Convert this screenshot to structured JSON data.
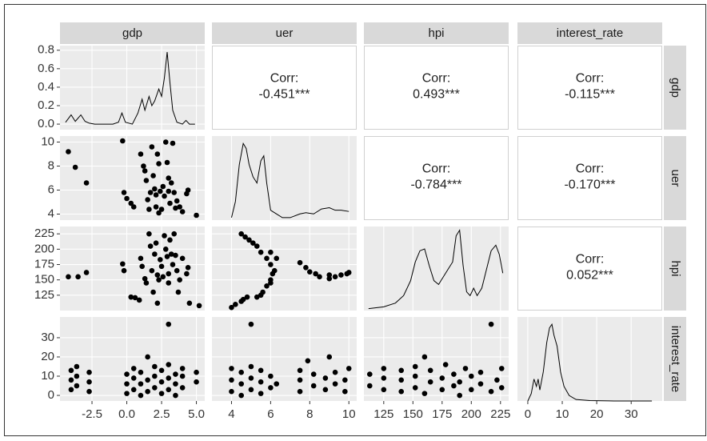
{
  "chart_data": {
    "type": "pairs",
    "variables": [
      "gdp",
      "uer",
      "hpi",
      "interest_rate"
    ],
    "color": "#000000",
    "grid": true,
    "x_axes": [
      {
        "lim": [
          -4.8,
          5.6
        ],
        "ticks": [
          -2.5,
          {
            "value": 0,
            "label": "0.0"
          },
          2.5,
          {
            "value": 5,
            "label": "5.0"
          }
        ]
      },
      {
        "lim": [
          3,
          10.4
        ],
        "ticks": [
          4,
          6,
          8,
          10
        ]
      },
      {
        "lim": [
          108,
          232
        ],
        "ticks": [
          125,
          150,
          175,
          200,
          225
        ]
      },
      {
        "lim": [
          -3,
          39
        ],
        "ticks": [
          0,
          10,
          20,
          30
        ]
      }
    ],
    "y_axes": [
      {
        "lim": [
          -0.06,
          0.85
        ],
        "ticks": [
          {
            "value": 0,
            "label": "0.0"
          },
          0.2,
          0.4,
          0.6,
          0.8
        ]
      },
      {
        "lim": [
          3.5,
          10.5
        ],
        "ticks": [
          4,
          6,
          8,
          10
        ]
      },
      {
        "lim": [
          100,
          237
        ],
        "ticks": [
          125,
          150,
          175,
          200,
          225
        ]
      },
      {
        "lim": [
          -2.9,
          40.8
        ],
        "ticks": [
          0,
          10,
          20,
          30
        ]
      }
    ],
    "densities": [
      {
        "ylim": [
          -0.06,
          0.85
        ],
        "x": [
          -4.4,
          -4.0,
          -3.7,
          -3.3,
          -3.0,
          -2.7,
          -2.3,
          -1.0,
          -0.6,
          -0.35,
          -0.1,
          0.4,
          0.8,
          1.1,
          1.3,
          1.6,
          1.8,
          2.0,
          2.3,
          2.5,
          2.7,
          2.9,
          3.1,
          3.3,
          3.6,
          4.0,
          4.25,
          4.5,
          4.9
        ],
        "y": [
          0.02,
          0.1,
          0.03,
          0.1,
          0.03,
          0.01,
          0.0,
          0.0,
          0.02,
          0.12,
          0.02,
          0.0,
          0.12,
          0.27,
          0.15,
          0.3,
          0.2,
          0.25,
          0.38,
          0.3,
          0.5,
          0.78,
          0.45,
          0.15,
          0.02,
          0.0,
          0.04,
          0.0,
          0.0
        ]
      },
      {
        "ylim": [
          0,
          0.68
        ],
        "x": [
          4.0,
          4.2,
          4.4,
          4.6,
          4.75,
          4.9,
          5.1,
          5.3,
          5.5,
          5.65,
          5.8,
          6.0,
          6.3,
          6.6,
          7.0,
          7.5,
          7.8,
          8.2,
          8.6,
          9.0,
          9.3,
          9.6,
          10.0
        ],
        "y": [
          0.02,
          0.15,
          0.45,
          0.62,
          0.58,
          0.45,
          0.35,
          0.3,
          0.48,
          0.52,
          0.3,
          0.08,
          0.05,
          0.02,
          0.02,
          0.05,
          0.06,
          0.05,
          0.09,
          0.1,
          0.08,
          0.08,
          0.07
        ]
      },
      {
        "ylim": [
          0,
          0.0225
        ],
        "x": [
          112,
          125,
          135,
          142,
          148,
          152,
          156,
          160,
          164,
          168,
          172,
          176,
          180,
          184,
          187,
          190,
          193,
          196,
          199,
          202,
          205,
          209,
          213,
          217,
          221,
          224,
          227
        ],
        "y": [
          0.0005,
          0.001,
          0.002,
          0.004,
          0.008,
          0.013,
          0.016,
          0.0165,
          0.012,
          0.008,
          0.007,
          0.009,
          0.011,
          0.013,
          0.02,
          0.0215,
          0.012,
          0.005,
          0.004,
          0.006,
          0.004,
          0.006,
          0.011,
          0.016,
          0.0175,
          0.015,
          0.01
        ]
      },
      {
        "ylim": [
          0,
          0.23
        ],
        "x": [
          0,
          1,
          1.8,
          2.5,
          3,
          3.5,
          4.5,
          5.5,
          6.3,
          7,
          7.6,
          8.5,
          9.5,
          10.5,
          12,
          14,
          18,
          25,
          36
        ],
        "y": [
          0.0,
          0.02,
          0.06,
          0.04,
          0.06,
          0.03,
          0.08,
          0.16,
          0.2,
          0.21,
          0.18,
          0.15,
          0.08,
          0.04,
          0.015,
          0.004,
          0.001,
          0.0,
          0.0
        ]
      }
    ],
    "upper": [
      {
        "label": "Corr:",
        "text": "-0.451***"
      },
      {
        "label": "Corr:",
        "text": "0.493***"
      },
      {
        "label": "Corr:",
        "text": "-0.115***"
      },
      {
        "label": "Corr:",
        "text": "-0.784***"
      },
      {
        "label": "Corr:",
        "text": "-0.170***"
      },
      {
        "label": "Corr:",
        "text": "0.052***"
      }
    ],
    "lower": [
      {
        "x": [
          -4.2,
          -3.7,
          -2.9,
          -0.3,
          -0.2,
          0.0,
          0.3,
          0.5,
          1.0,
          1.2,
          1.3,
          1.4,
          1.5,
          1.6,
          1.7,
          1.8,
          1.9,
          2.0,
          2.1,
          2.1,
          2.2,
          2.3,
          2.4,
          2.5,
          2.6,
          2.7,
          2.8,
          2.9,
          3.0,
          3.0,
          3.1,
          3.2,
          3.3,
          3.4,
          3.6,
          3.8,
          4.0,
          4.3,
          4.4,
          5.0,
          3.5,
          2.3
        ],
        "y": [
          9.2,
          7.9,
          6.6,
          10.1,
          5.8,
          5.3,
          4.9,
          4.6,
          9.0,
          8.0,
          7.6,
          6.8,
          5.2,
          4.4,
          5.8,
          9.6,
          7.2,
          6.1,
          5.6,
          4.6,
          9.0,
          8.2,
          5.9,
          4.4,
          6.3,
          5.5,
          10.0,
          8.3,
          7.0,
          5.9,
          4.9,
          6.6,
          9.9,
          5.8,
          5.1,
          4.6,
          4.2,
          5.7,
          6.0,
          3.9,
          4.5,
          4.1
        ]
      },
      {
        "x": [
          -4.2,
          -3.5,
          -2.9,
          -0.3,
          -0.2,
          0.3,
          0.6,
          0.9,
          1.0,
          1.1,
          1.3,
          1.4,
          1.6,
          1.7,
          1.8,
          1.9,
          2.0,
          2.1,
          2.2,
          2.3,
          2.4,
          2.5,
          2.6,
          2.7,
          2.8,
          2.9,
          3.0,
          3.0,
          3.1,
          3.2,
          3.3,
          3.4,
          3.5,
          3.6,
          3.7,
          3.8,
          4.0,
          4.3,
          4.4,
          5.2,
          4.5,
          2.2
        ],
        "y": [
          155,
          155,
          162,
          176,
          165,
          122,
          121,
          117,
          185,
          172,
          152,
          145,
          225,
          205,
          165,
          130,
          192,
          210,
          158,
          150,
          183,
          172,
          155,
          222,
          200,
          188,
          160,
          145,
          215,
          192,
          175,
          225,
          190,
          165,
          130,
          150,
          185,
          160,
          170,
          108,
          112,
          112
        ]
      },
      {
        "x": [
          4.0,
          4.2,
          4.5,
          4.6,
          4.8,
          5.3,
          5.5,
          5.6,
          5.8,
          6.0,
          6.0,
          6.1,
          4.5,
          4.7,
          4.9,
          5.1,
          5.3,
          5.5,
          5.8,
          6.0,
          6.2,
          6.3,
          6.0,
          7.5,
          7.8,
          8.0,
          8.3,
          8.5,
          9.0,
          9.0,
          9.3,
          9.6,
          9.9,
          10.0
        ],
        "y": [
          105,
          110,
          115,
          118,
          122,
          122,
          125,
          130,
          140,
          145,
          150,
          160,
          225,
          220,
          215,
          210,
          205,
          195,
          185,
          175,
          165,
          185,
          195,
          178,
          170,
          163,
          160,
          155,
          152,
          158,
          155,
          158,
          160,
          162
        ]
      },
      {
        "x": [
          -4.0,
          -4.0,
          -4.0,
          -3.6,
          -3.6,
          -3.6,
          -2.7,
          -2.7,
          -2.7,
          0.0,
          0.0,
          0.0,
          0.5,
          0.5,
          0.5,
          1.0,
          1.0,
          1.0,
          1.5,
          1.5,
          1.5,
          2.0,
          2.0,
          2.0,
          2.5,
          2.5,
          2.5,
          3.0,
          3.0,
          3.0,
          3.0,
          3.5,
          3.5,
          3.5,
          4.0,
          4.0,
          4.0,
          5.0,
          5.0
        ],
        "y": [
          3,
          8,
          13,
          5,
          10,
          15,
          2,
          7,
          12,
          1,
          6,
          11,
          3,
          9,
          14,
          0,
          6,
          12,
          2,
          8,
          20,
          4,
          10,
          15,
          1,
          7,
          13,
          37,
          3,
          9,
          16,
          0,
          6,
          11,
          4,
          10,
          14,
          7,
          12
        ]
      },
      {
        "x": [
          4.0,
          4.0,
          4.0,
          4.5,
          4.5,
          4.5,
          5.0,
          5.0,
          5.0,
          5.0,
          5.5,
          5.5,
          5.5,
          6.0,
          6.0,
          6.3,
          7.5,
          7.5,
          7.5,
          7.9,
          8.2,
          8.2,
          8.8,
          8.8,
          9.0,
          9.3,
          9.3,
          9.8,
          9.8,
          10.0
        ],
        "y": [
          2,
          8,
          14,
          0,
          6,
          12,
          37,
          3,
          9,
          15,
          1,
          7,
          13,
          4,
          10,
          6,
          2,
          8,
          13,
          18,
          5,
          11,
          3,
          9,
          20,
          6,
          12,
          2,
          8,
          14
        ]
      },
      {
        "x": [
          113,
          113,
          125,
          125,
          125,
          140,
          140,
          140,
          152,
          152,
          152,
          160,
          160,
          165,
          165,
          175,
          175,
          178,
          185,
          185,
          190,
          190,
          195,
          200,
          200,
          208,
          208,
          217,
          217,
          222,
          226,
          226
        ],
        "y": [
          5,
          11,
          3,
          9,
          14,
          2,
          8,
          13,
          4,
          10,
          15,
          20,
          1,
          7,
          13,
          3,
          9,
          16,
          5,
          11,
          0,
          7,
          14,
          3,
          10,
          6,
          12,
          37,
          2,
          8,
          14,
          4
        ]
      }
    ]
  }
}
